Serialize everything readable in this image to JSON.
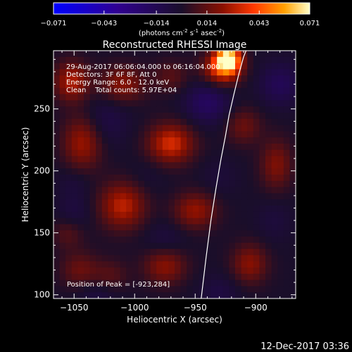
{
  "colorbar": {
    "ticks": [
      "-0.071",
      "-0.043",
      "-0.014",
      "0.014",
      "0.043",
      "0.071"
    ],
    "units_prefix": "(photons cm",
    "units_exp1": "-2",
    "units_mid1": " s",
    "units_exp2": "-1",
    "units_mid2": " asec",
    "units_exp3": "-2",
    "units_suffix": ")"
  },
  "annotations": {
    "time_range": "29-Aug-2017 06:06:04.000 to 06:16:04.000",
    "detectors": "Detectors: 3F 6F 8F, Att 0",
    "energy_range": "Energy Range: 6.0 - 12.0 keV",
    "clean_counts": "Clean    Total counts: 5.97E+04",
    "peak_position": "Position of Peak = [-923,284]"
  },
  "footer": {
    "timestamp": "12-Dec-2017 03:36"
  },
  "colors": {
    "background": "#000000",
    "axes": "#ffffff",
    "colormap": [
      "#0000ff",
      "#300090",
      "#1a0e2a",
      "#8a1000",
      "#ff3800",
      "#ffa000",
      "#ffffc8"
    ]
  },
  "chart_data": {
    "type": "heatmap",
    "title": "Reconstructed RHESSI Image",
    "xlabel": "Heliocentric X (arcsec)",
    "ylabel": "Heliocentric Y (arcsec)",
    "xlim": [
      -1067,
      -867
    ],
    "ylim": [
      97,
      297
    ],
    "x_ticks": [
      -1050,
      -1000,
      -950,
      -900
    ],
    "y_ticks": [
      100,
      150,
      200,
      250
    ],
    "x_tick_labels": [
      "−1050",
      "−1000",
      "−950",
      "−900"
    ],
    "y_tick_labels": [
      "100",
      "150",
      "200",
      "250"
    ],
    "color_range": [
      -0.071,
      0.071
    ],
    "peak": {
      "x": -923,
      "y": 284
    },
    "limb_curve": {
      "x": [
        -945,
        -941,
        -937,
        -933,
        -929,
        -925,
        -922,
        -918,
        -914,
        -910,
        -908
      ],
      "y": [
        97,
        130,
        160,
        185,
        208,
        228,
        245,
        262,
        278,
        292,
        297
      ]
    },
    "blobs": [
      {
        "x": -923,
        "y": 290,
        "amp": 0.071,
        "sx": 7,
        "sy": 7
      },
      {
        "x": -928,
        "y": 282,
        "amp": 0.035,
        "sx": 11,
        "sy": 9
      },
      {
        "x": -1052,
        "y": 272,
        "amp": 0.028,
        "sx": 10,
        "sy": 11
      },
      {
        "x": -1010,
        "y": 270,
        "amp": 0.022,
        "sx": 13,
        "sy": 10
      },
      {
        "x": -970,
        "y": 276,
        "amp": 0.012,
        "sx": 10,
        "sy": 9
      },
      {
        "x": -1043,
        "y": 223,
        "amp": 0.026,
        "sx": 11,
        "sy": 15
      },
      {
        "x": -970,
        "y": 222,
        "amp": 0.034,
        "sx": 13,
        "sy": 11
      },
      {
        "x": -910,
        "y": 236,
        "amp": 0.016,
        "sx": 10,
        "sy": 10
      },
      {
        "x": -1010,
        "y": 172,
        "amp": 0.03,
        "sx": 13,
        "sy": 13
      },
      {
        "x": -950,
        "y": 168,
        "amp": 0.024,
        "sx": 12,
        "sy": 10
      },
      {
        "x": -883,
        "y": 205,
        "amp": 0.02,
        "sx": 9,
        "sy": 14
      },
      {
        "x": -1055,
        "y": 150,
        "amp": 0.012,
        "sx": 9,
        "sy": 9
      },
      {
        "x": -1045,
        "y": 120,
        "amp": 0.016,
        "sx": 11,
        "sy": 10
      },
      {
        "x": -975,
        "y": 123,
        "amp": 0.022,
        "sx": 12,
        "sy": 10
      },
      {
        "x": -905,
        "y": 125,
        "amp": 0.022,
        "sx": 10,
        "sy": 11
      },
      {
        "x": -1020,
        "y": 115,
        "amp": 0.012,
        "sx": 10,
        "sy": 9
      },
      {
        "x": -1025,
        "y": 240,
        "amp": -0.01,
        "sx": 14,
        "sy": 14
      },
      {
        "x": -940,
        "y": 255,
        "amp": -0.018,
        "sx": 13,
        "sy": 12
      },
      {
        "x": -880,
        "y": 270,
        "amp": -0.015,
        "sx": 12,
        "sy": 12
      },
      {
        "x": -1050,
        "y": 190,
        "amp": -0.006,
        "sx": 10,
        "sy": 10
      },
      {
        "x": -990,
        "y": 195,
        "amp": -0.004,
        "sx": 12,
        "sy": 11
      },
      {
        "x": -930,
        "y": 195,
        "amp": -0.005,
        "sx": 11,
        "sy": 11
      },
      {
        "x": -1050,
        "y": 165,
        "amp": -0.008,
        "sx": 10,
        "sy": 10
      },
      {
        "x": -975,
        "y": 145,
        "amp": -0.007,
        "sx": 12,
        "sy": 10
      },
      {
        "x": -885,
        "y": 160,
        "amp": -0.006,
        "sx": 10,
        "sy": 12
      },
      {
        "x": -1030,
        "y": 100,
        "amp": -0.008,
        "sx": 12,
        "sy": 10
      },
      {
        "x": -930,
        "y": 102,
        "amp": -0.008,
        "sx": 12,
        "sy": 10
      }
    ]
  }
}
